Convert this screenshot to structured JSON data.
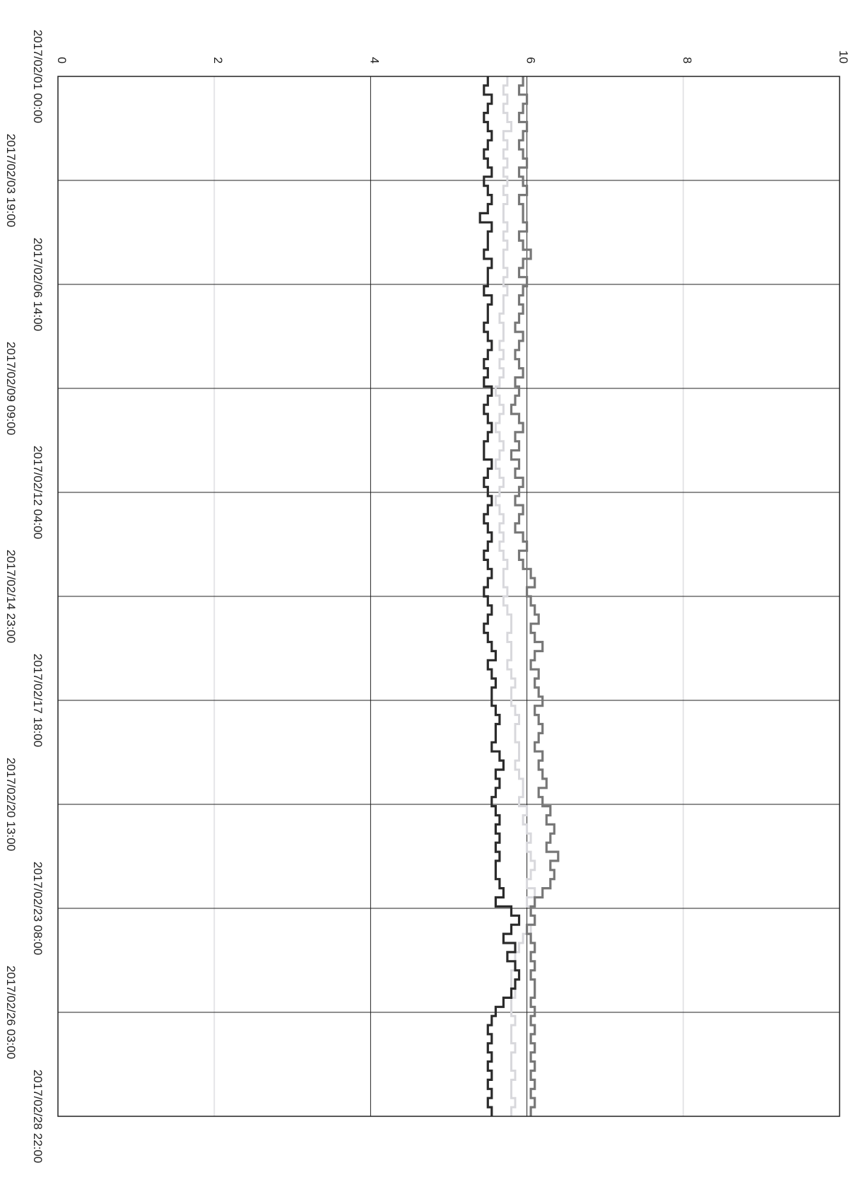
{
  "chart_data": {
    "type": "line",
    "orientation": "rotated-90-clockwise",
    "ylim": [
      0,
      10
    ],
    "y_ticks": [
      "0",
      "2",
      "4",
      "6",
      "8",
      "10"
    ],
    "x_ticks": [
      "2017/02/01 00:00",
      "2017/02/03 19:00",
      "2017/02/06 14:00",
      "2017/02/09 09:00",
      "2017/02/12 04:00",
      "2017/02/14 23:00",
      "2017/02/17 18:00",
      "2017/02/20 13:00",
      "2017/02/23 08:00",
      "2017/02/26 03:00",
      "2017/02/28 22:00"
    ],
    "x_tick_step_hours": 67,
    "grid": true,
    "x_sample_step_hours": 6,
    "series": [
      {
        "color": "#2b2b2b",
        "values": [
          5.5,
          5.45,
          5.55,
          5.5,
          5.45,
          5.5,
          5.55,
          5.5,
          5.45,
          5.5,
          5.55,
          5.45,
          5.5,
          5.55,
          5.5,
          5.4,
          5.55,
          5.5,
          5.5,
          5.45,
          5.55,
          5.5,
          5.5,
          5.45,
          5.55,
          5.5,
          5.5,
          5.45,
          5.5,
          5.55,
          5.5,
          5.45,
          5.5,
          5.45,
          5.55,
          5.5,
          5.45,
          5.5,
          5.55,
          5.5,
          5.45,
          5.45,
          5.55,
          5.5,
          5.45,
          5.5,
          5.55,
          5.5,
          5.45,
          5.5,
          5.55,
          5.5,
          5.45,
          5.5,
          5.55,
          5.5,
          5.45,
          5.5,
          5.55,
          5.5,
          5.45,
          5.5,
          5.55,
          5.6,
          5.5,
          5.55,
          5.6,
          5.55,
          5.55,
          5.6,
          5.65,
          5.6,
          5.6,
          5.55,
          5.65,
          5.7,
          5.6,
          5.65,
          5.6,
          5.55,
          5.6,
          5.65,
          5.6,
          5.65,
          5.6,
          5.65,
          5.6,
          5.6,
          5.65,
          5.7,
          5.6,
          5.8,
          5.9,
          5.8,
          5.7,
          5.85,
          5.75,
          5.85,
          5.9,
          5.85,
          5.8,
          5.7,
          5.6,
          5.55,
          5.5,
          5.55,
          5.5,
          5.55,
          5.5,
          5.55,
          5.5,
          5.55,
          5.5,
          5.55
        ]
      },
      {
        "color": "#d8d8dc",
        "values": [
          5.75,
          5.7,
          5.75,
          5.7,
          5.75,
          5.8,
          5.7,
          5.75,
          5.7,
          5.75,
          5.7,
          5.75,
          5.7,
          5.75,
          5.7,
          5.7,
          5.75,
          5.7,
          5.75,
          5.7,
          5.7,
          5.75,
          5.7,
          5.75,
          5.7,
          5.7,
          5.65,
          5.7,
          5.7,
          5.65,
          5.7,
          5.65,
          5.7,
          5.65,
          5.6,
          5.65,
          5.7,
          5.65,
          5.6,
          5.65,
          5.7,
          5.65,
          5.6,
          5.65,
          5.7,
          5.65,
          5.6,
          5.65,
          5.7,
          5.65,
          5.7,
          5.65,
          5.7,
          5.75,
          5.7,
          5.7,
          5.75,
          5.7,
          5.75,
          5.8,
          5.8,
          5.75,
          5.8,
          5.8,
          5.75,
          5.8,
          5.85,
          5.8,
          5.8,
          5.85,
          5.9,
          5.85,
          5.85,
          5.9,
          5.9,
          5.85,
          5.9,
          5.95,
          5.95,
          5.9,
          6.0,
          5.95,
          6.0,
          6.05,
          6.0,
          6.05,
          6.1,
          6.05,
          6.0,
          6.1,
          6.0,
          6.05,
          6.1,
          6.05,
          5.95,
          5.9,
          5.85,
          5.85,
          5.8,
          5.8,
          5.85,
          5.8,
          5.8,
          5.85,
          5.8,
          5.8,
          5.85,
          5.8,
          5.8,
          5.85,
          5.8,
          5.8,
          5.85,
          5.8
        ]
      },
      {
        "color": "#777777",
        "values": [
          5.95,
          5.9,
          6.0,
          5.95,
          5.9,
          6.0,
          5.95,
          5.9,
          5.95,
          6.0,
          5.9,
          5.95,
          6.0,
          5.9,
          5.95,
          5.95,
          6.0,
          5.9,
          5.95,
          6.05,
          5.95,
          5.9,
          6.0,
          5.95,
          5.9,
          5.95,
          5.9,
          5.85,
          5.95,
          5.9,
          5.85,
          5.9,
          5.95,
          5.85,
          5.9,
          5.85,
          5.8,
          5.9,
          5.95,
          5.85,
          5.9,
          5.8,
          5.9,
          5.85,
          5.95,
          5.9,
          5.85,
          5.95,
          5.9,
          5.85,
          5.95,
          6.0,
          5.9,
          5.95,
          6.05,
          6.1,
          6.0,
          6.05,
          6.1,
          6.15,
          6.05,
          6.1,
          6.2,
          6.1,
          6.05,
          6.15,
          6.1,
          6.15,
          6.2,
          6.1,
          6.15,
          6.2,
          6.15,
          6.1,
          6.2,
          6.15,
          6.2,
          6.25,
          6.15,
          6.2,
          6.3,
          6.25,
          6.35,
          6.3,
          6.25,
          6.4,
          6.3,
          6.35,
          6.3,
          6.2,
          6.1,
          6.05,
          6.1,
          6.0,
          6.05,
          6.1,
          6.05,
          6.1,
          6.05,
          6.1,
          6.1,
          6.05,
          6.1,
          6.05,
          6.1,
          6.05,
          6.1,
          6.05,
          6.1,
          6.05,
          6.1,
          6.05,
          6.1,
          6.05
        ]
      }
    ]
  }
}
